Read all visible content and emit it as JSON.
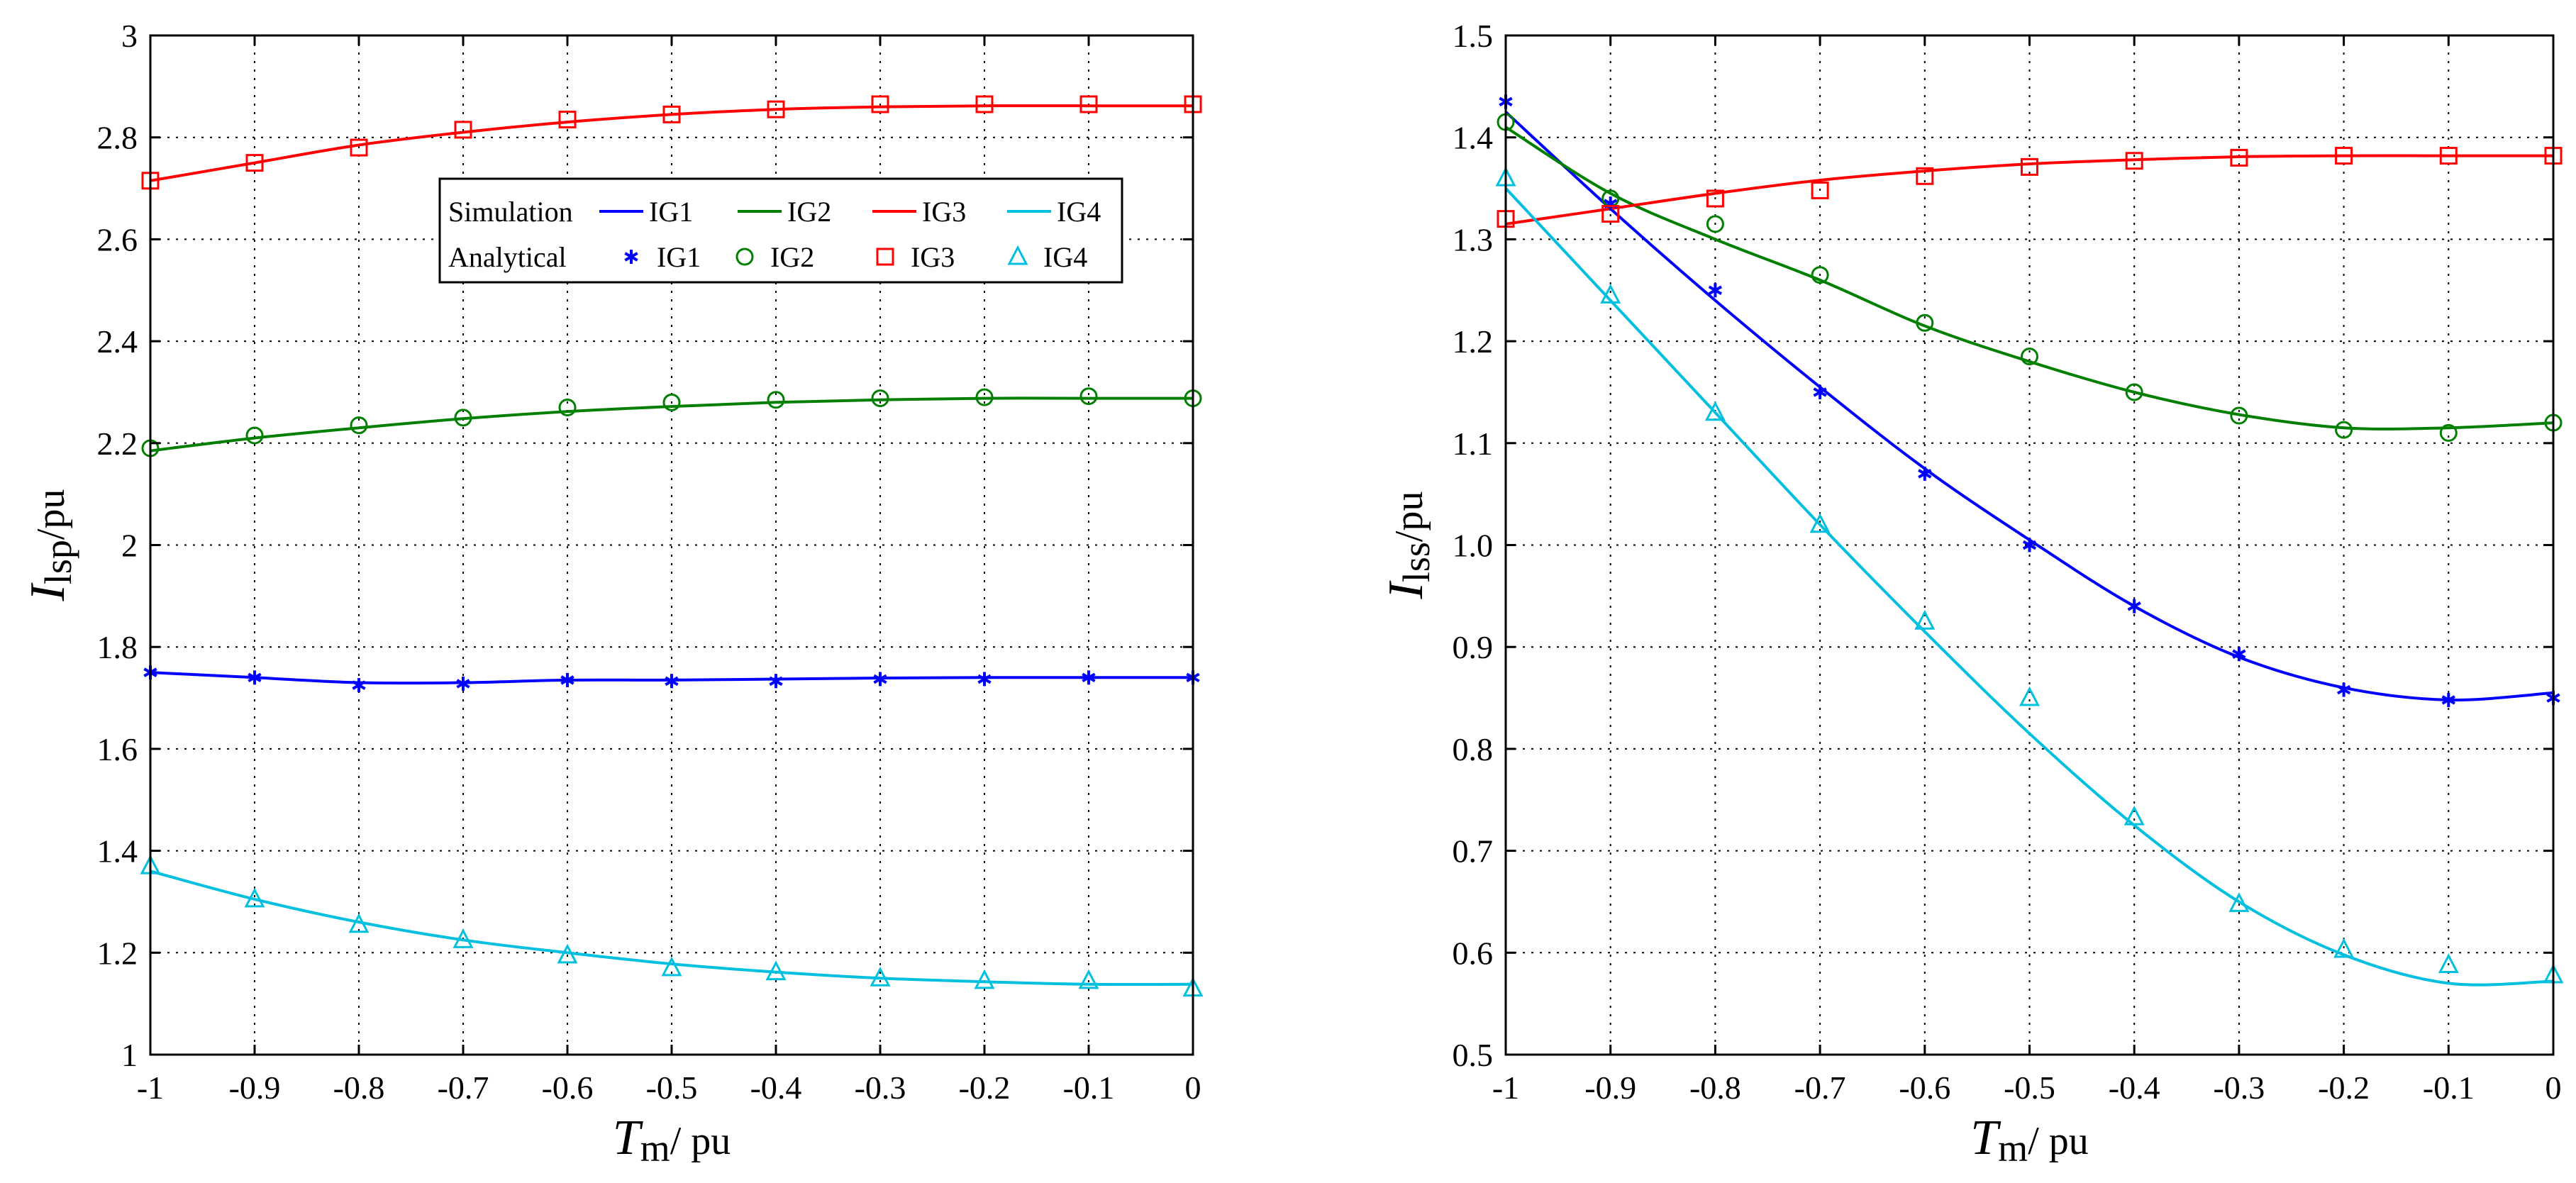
{
  "colors": {
    "IG1": "#0000ff",
    "IG2": "#007f00",
    "IG3": "#ff0000",
    "IG4": "#00bfdf",
    "grid": "#000000"
  },
  "chart_data": [
    {
      "type": "line",
      "id": "left",
      "xlabel": {
        "main": "T",
        "sub": "m",
        "rest": "/ pu"
      },
      "ylabel": {
        "main": "I",
        "sub": "lsp",
        "rest": "/pu"
      },
      "xlim": [
        -1,
        0
      ],
      "ylim": [
        1,
        3
      ],
      "xticks": [
        -1,
        -0.9,
        -0.8,
        -0.7,
        -0.6,
        -0.5,
        -0.4,
        -0.3,
        -0.2,
        -0.1,
        0
      ],
      "xtick_labels": [
        "-1",
        "-0.9",
        "-0.8",
        "-0.7",
        "-0.6",
        "-0.5",
        "-0.4",
        "-0.3",
        "-0.2",
        "-0.1",
        "0"
      ],
      "yticks": [
        1,
        1.2,
        1.4,
        1.6,
        1.8,
        2,
        2.2,
        2.4,
        2.6,
        2.8,
        3
      ],
      "ytick_labels": [
        "1",
        "1.2",
        "1.4",
        "1.6",
        "1.8",
        "2",
        "2.2",
        "2.4",
        "2.6",
        "2.8",
        "3"
      ],
      "grid": true,
      "legend": {
        "placement": "top-center",
        "row_labels": [
          "Simulation",
          "Analytical"
        ],
        "entries": [
          "IG1",
          "IG2",
          "IG3",
          "IG4"
        ]
      },
      "x": [
        -1,
        -0.9,
        -0.8,
        -0.7,
        -0.6,
        -0.5,
        -0.4,
        -0.3,
        -0.2,
        -0.1,
        0
      ],
      "series": [
        {
          "name": "IG1",
          "marker": "star",
          "simulation": [
            1.75,
            1.74,
            1.73,
            1.73,
            1.735,
            1.735,
            1.737,
            1.739,
            1.74,
            1.74,
            1.74
          ],
          "analytical": [
            1.75,
            1.74,
            1.725,
            1.728,
            1.735,
            1.733,
            1.733,
            1.737,
            1.737,
            1.74,
            1.74
          ]
        },
        {
          "name": "IG2",
          "marker": "circle",
          "simulation": [
            2.185,
            2.21,
            2.23,
            2.248,
            2.262,
            2.272,
            2.28,
            2.285,
            2.288,
            2.288,
            2.288
          ],
          "analytical": [
            2.19,
            2.215,
            2.235,
            2.25,
            2.27,
            2.28,
            2.285,
            2.288,
            2.29,
            2.292,
            2.288
          ]
        },
        {
          "name": "IG3",
          "marker": "square",
          "simulation": [
            2.715,
            2.75,
            2.785,
            2.81,
            2.83,
            2.845,
            2.855,
            2.86,
            2.862,
            2.862,
            2.862
          ],
          "analytical": [
            2.715,
            2.75,
            2.78,
            2.815,
            2.835,
            2.845,
            2.855,
            2.865,
            2.865,
            2.865,
            2.865
          ]
        },
        {
          "name": "IG4",
          "marker": "triangle",
          "simulation": [
            1.36,
            1.305,
            1.26,
            1.225,
            1.2,
            1.178,
            1.162,
            1.15,
            1.143,
            1.138,
            1.138
          ],
          "analytical": [
            1.37,
            1.305,
            1.255,
            1.225,
            1.195,
            1.17,
            1.162,
            1.15,
            1.145,
            1.145,
            1.13
          ]
        }
      ]
    },
    {
      "type": "line",
      "id": "right",
      "xlabel": {
        "main": "T",
        "sub": "m",
        "rest": "/ pu"
      },
      "ylabel": {
        "main": "I",
        "sub": "lss",
        "rest": "/pu"
      },
      "xlim": [
        -1,
        0
      ],
      "ylim": [
        0.5,
        1.5
      ],
      "xticks": [
        -1,
        -0.9,
        -0.8,
        -0.7,
        -0.6,
        -0.5,
        -0.4,
        -0.3,
        -0.2,
        -0.1,
        0
      ],
      "xtick_labels": [
        "-1",
        "-0.9",
        "-0.8",
        "-0.7",
        "-0.6",
        "-0.5",
        "-0.4",
        "-0.3",
        "-0.2",
        "-0.1",
        "0"
      ],
      "yticks": [
        0.5,
        0.6,
        0.7,
        0.8,
        0.9,
        1.0,
        1.1,
        1.2,
        1.3,
        1.4,
        1.5
      ],
      "ytick_labels": [
        "0.5",
        "0.6",
        "0.7",
        "0.8",
        "0.9",
        "1.0",
        "1.1",
        "1.2",
        "1.3",
        "1.4",
        "1.5"
      ],
      "grid": true,
      "x": [
        -1,
        -0.9,
        -0.8,
        -0.7,
        -0.6,
        -0.5,
        -0.4,
        -0.3,
        -0.2,
        -0.1,
        0
      ],
      "series": [
        {
          "name": "IG1",
          "marker": "star",
          "simulation": [
            1.425,
            1.33,
            1.24,
            1.155,
            1.075,
            1.005,
            0.94,
            0.89,
            0.86,
            0.848,
            0.855
          ],
          "analytical": [
            1.435,
            1.335,
            1.25,
            1.15,
            1.07,
            1.0,
            0.94,
            0.893,
            0.858,
            0.848,
            0.85
          ]
        },
        {
          "name": "IG2",
          "marker": "circle",
          "simulation": [
            1.41,
            1.345,
            1.3,
            1.26,
            1.215,
            1.18,
            1.15,
            1.128,
            1.115,
            1.115,
            1.12
          ],
          "analytical": [
            1.415,
            1.34,
            1.315,
            1.265,
            1.218,
            1.185,
            1.15,
            1.127,
            1.113,
            1.11,
            1.12
          ]
        },
        {
          "name": "IG3",
          "marker": "square",
          "simulation": [
            1.315,
            1.33,
            1.345,
            1.358,
            1.367,
            1.374,
            1.378,
            1.381,
            1.382,
            1.382,
            1.382
          ],
          "analytical": [
            1.32,
            1.325,
            1.34,
            1.348,
            1.362,
            1.371,
            1.377,
            1.38,
            1.382,
            1.382,
            1.382
          ]
        },
        {
          "name": "IG4",
          "marker": "triangle",
          "simulation": [
            1.35,
            1.24,
            1.13,
            1.02,
            0.915,
            0.815,
            0.725,
            0.65,
            0.598,
            0.57,
            0.572
          ],
          "analytical": [
            1.36,
            1.245,
            1.13,
            1.02,
            0.925,
            0.85,
            0.733,
            0.648,
            0.603,
            0.588,
            0.578
          ]
        }
      ]
    }
  ]
}
